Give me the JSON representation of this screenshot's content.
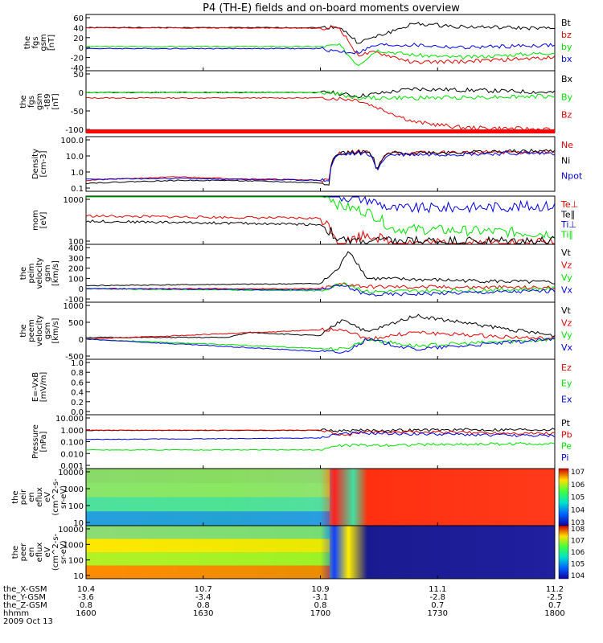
{
  "title": "P4 (TH-E) fields and on-board moments overview",
  "colors": {
    "black": "#000000",
    "red": "#e00000",
    "green": "#00e000",
    "blue": "#0000e0",
    "axis": "#000000"
  },
  "time_ticks": [
    "1600",
    "1630",
    "1700",
    "1730",
    "1800"
  ],
  "footer": {
    "rows": [
      {
        "label": "the_X-GSM",
        "values": [
          "10.4",
          "10.7",
          "10.9",
          "11.1",
          "11.2"
        ]
      },
      {
        "label": "the_Y-GSM",
        "values": [
          "-3.6",
          "-3.4",
          "-3.1",
          "-2.8",
          "-2.5"
        ]
      },
      {
        "label": "the_Z-GSM",
        "values": [
          "0.8",
          "0.8",
          "0.8",
          "0.7",
          "0.7"
        ]
      },
      {
        "label": "hhmm",
        "values": [
          "1600",
          "1630",
          "1700",
          "1730",
          "1800"
        ]
      }
    ],
    "date": "2009 Oct 13"
  },
  "chart_data": [
    {
      "type": "line",
      "ylabel": [
        "the",
        "fgs",
        "gsm",
        "[nT]"
      ],
      "yticks": [
        "60",
        "40",
        "20",
        "0",
        "-20",
        "-40"
      ],
      "legend": [
        {
          "name": "Bt",
          "color": "black"
        },
        {
          "name": "bz",
          "color": "red"
        },
        {
          "name": "by",
          "color": "green"
        },
        {
          "name": "bx",
          "color": "blue"
        }
      ],
      "series": [
        {
          "name": "Bt",
          "color": "black",
          "segments": [
            [
              0,
              40
            ],
            [
              0.5,
              40
            ],
            [
              0.54,
              42
            ],
            [
              0.58,
              10
            ],
            [
              0.62,
              22
            ],
            [
              0.7,
              48
            ],
            [
              0.8,
              42
            ],
            [
              1,
              38
            ]
          ]
        },
        {
          "name": "bz",
          "color": "red",
          "segments": [
            [
              0,
              40
            ],
            [
              0.5,
              39
            ],
            [
              0.54,
              40
            ],
            [
              0.58,
              -15
            ],
            [
              0.62,
              -10
            ],
            [
              0.7,
              -30
            ],
            [
              0.8,
              -28
            ],
            [
              1,
              -20
            ]
          ]
        },
        {
          "name": "by",
          "color": "green",
          "segments": [
            [
              0,
              2
            ],
            [
              0.5,
              2
            ],
            [
              0.54,
              5
            ],
            [
              0.58,
              -35
            ],
            [
              0.62,
              -5
            ],
            [
              0.7,
              -15
            ],
            [
              0.8,
              -20
            ],
            [
              1,
              -10
            ]
          ]
        },
        {
          "name": "bx",
          "color": "blue",
          "segments": [
            [
              0,
              -2
            ],
            [
              0.5,
              -2
            ],
            [
              0.54,
              -8
            ],
            [
              0.58,
              -10
            ],
            [
              0.62,
              5
            ],
            [
              0.7,
              5
            ],
            [
              0.8,
              0
            ],
            [
              1,
              5
            ]
          ]
        }
      ]
    },
    {
      "type": "line",
      "ylabel": [
        "the",
        "fgs",
        "gsm",
        "-t89",
        "[nT]"
      ],
      "yticks": [
        "50",
        "0",
        "-50",
        "-100"
      ],
      "legend": [
        {
          "name": "Bx",
          "color": "black"
        },
        {
          "name": "By",
          "color": "green"
        },
        {
          "name": "Bz",
          "color": "red"
        }
      ],
      "series": [
        {
          "name": "Bx",
          "color": "black",
          "segments": [
            [
              0,
              0
            ],
            [
              0.52,
              0
            ],
            [
              0.58,
              -10
            ],
            [
              0.7,
              10
            ],
            [
              1,
              0
            ]
          ]
        },
        {
          "name": "By",
          "color": "green",
          "segments": [
            [
              0,
              0
            ],
            [
              0.52,
              0
            ],
            [
              0.58,
              -15
            ],
            [
              0.7,
              -15
            ],
            [
              1,
              -10
            ]
          ]
        },
        {
          "name": "Bz",
          "color": "red",
          "segments": [
            [
              0,
              -15
            ],
            [
              0.52,
              -15
            ],
            [
              0.58,
              -20
            ],
            [
              0.7,
              -80
            ],
            [
              0.8,
              -95
            ],
            [
              1,
              -100
            ]
          ]
        }
      ]
    },
    {
      "type": "line",
      "log": true,
      "ylabel": [
        "Density",
        "[cm-3]"
      ],
      "yticks": [
        "100.0",
        "10.0",
        "1.0",
        "0.1"
      ],
      "legend": [
        {
          "name": "Ne",
          "color": "red"
        },
        {
          "name": "Ni",
          "color": "black"
        },
        {
          "name": "Npot",
          "color": "blue"
        }
      ],
      "series": [
        {
          "name": "Ne",
          "color": "red",
          "segments": [
            [
              0,
              0.3
            ],
            [
              0.2,
              0.5
            ],
            [
              0.3,
              0.4
            ],
            [
              0.52,
              0.3
            ],
            [
              0.54,
              15
            ],
            [
              0.6,
              20
            ],
            [
              0.62,
              0.2
            ],
            [
              0.65,
              15
            ],
            [
              1,
              18
            ]
          ]
        },
        {
          "name": "Ni",
          "color": "black",
          "segments": [
            [
              0,
              0.2
            ],
            [
              0.2,
              0.3
            ],
            [
              0.3,
              0.3
            ],
            [
              0.52,
              0.2
            ],
            [
              0.54,
              15
            ],
            [
              0.6,
              18
            ],
            [
              0.62,
              0.15
            ],
            [
              0.65,
              15
            ],
            [
              1,
              20
            ]
          ]
        },
        {
          "name": "Npot",
          "color": "blue",
          "segments": [
            [
              0,
              0.35
            ],
            [
              0.2,
              0.4
            ],
            [
              0.3,
              0.35
            ],
            [
              0.52,
              0.3
            ],
            [
              0.54,
              12
            ],
            [
              0.6,
              15
            ],
            [
              0.62,
              0.25
            ],
            [
              0.65,
              12
            ],
            [
              1,
              15
            ]
          ]
        }
      ]
    },
    {
      "type": "line",
      "log": true,
      "ylabel": [
        "mom",
        "[eV]"
      ],
      "yticks": [
        "1000",
        "100"
      ],
      "legend": [
        {
          "name": "Te⊥",
          "color": "red"
        },
        {
          "name": "Te∥",
          "color": "black"
        },
        {
          "name": "Ti⊥",
          "color": "blue"
        },
        {
          "name": "Ti∥",
          "color": "green"
        }
      ],
      "series": [
        {
          "name": "Ti⊥",
          "color": "blue",
          "segments": [
            [
              0,
              2500
            ],
            [
              0.5,
              2500
            ],
            [
              0.54,
              1200
            ],
            [
              0.6,
              1000
            ],
            [
              0.65,
              600
            ],
            [
              1,
              700
            ]
          ]
        },
        {
          "name": "Ti∥",
          "color": "green",
          "segments": [
            [
              0,
              1800
            ],
            [
              0.5,
              1600
            ],
            [
              0.54,
              700
            ],
            [
              0.6,
              500
            ],
            [
              0.65,
              200
            ],
            [
              1,
              150
            ]
          ]
        },
        {
          "name": "Te⊥",
          "color": "red",
          "segments": [
            [
              0,
              400
            ],
            [
              0.5,
              350
            ],
            [
              0.54,
              80
            ],
            [
              0.6,
              150
            ],
            [
              0.65,
              90
            ],
            [
              1,
              90
            ]
          ]
        },
        {
          "name": "Te∥",
          "color": "black",
          "segments": [
            [
              0,
              300
            ],
            [
              0.5,
              250
            ],
            [
              0.54,
              100
            ],
            [
              0.6,
              100
            ],
            [
              0.65,
              100
            ],
            [
              1,
              100
            ]
          ]
        }
      ]
    },
    {
      "type": "line",
      "ylabel": [
        "the",
        "peim",
        "velocity",
        "gsm",
        "[km/s]"
      ],
      "yticks": [
        "400",
        "300",
        "200",
        "100",
        "0",
        "-100"
      ],
      "legend": [
        {
          "name": "Vt",
          "color": "black"
        },
        {
          "name": "Vz",
          "color": "red"
        },
        {
          "name": "Vy",
          "color": "green"
        },
        {
          "name": "Vx",
          "color": "blue"
        }
      ],
      "series": [
        {
          "name": "Vt",
          "color": "black",
          "segments": [
            [
              0,
              30
            ],
            [
              0.5,
              50
            ],
            [
              0.54,
              200
            ],
            [
              0.56,
              380
            ],
            [
              0.6,
              100
            ],
            [
              1,
              60
            ]
          ]
        },
        {
          "name": "Vz",
          "color": "red",
          "segments": [
            [
              0,
              0
            ],
            [
              0.5,
              0
            ],
            [
              0.55,
              50
            ],
            [
              0.6,
              20
            ],
            [
              1,
              10
            ]
          ]
        },
        {
          "name": "Vy",
          "color": "green",
          "segments": [
            [
              0,
              0
            ],
            [
              0.5,
              -20
            ],
            [
              0.55,
              60
            ],
            [
              0.6,
              -30
            ],
            [
              1,
              0
            ]
          ]
        },
        {
          "name": "Vx",
          "color": "blue",
          "segments": [
            [
              0,
              0
            ],
            [
              0.5,
              -10
            ],
            [
              0.55,
              30
            ],
            [
              0.6,
              -60
            ],
            [
              1,
              -20
            ]
          ]
        }
      ]
    },
    {
      "type": "line",
      "ylabel": [
        "the",
        "peem",
        "velocity",
        "gsm",
        "[km/s]"
      ],
      "yticks": [
        "1000",
        "500",
        "0",
        "-500"
      ],
      "legend": [
        {
          "name": "Vt",
          "color": "black"
        },
        {
          "name": "Vz",
          "color": "red"
        },
        {
          "name": "Vy",
          "color": "green"
        },
        {
          "name": "Vx",
          "color": "blue"
        }
      ],
      "series": [
        {
          "name": "Vt",
          "color": "black",
          "segments": [
            [
              0,
              50
            ],
            [
              0.3,
              50
            ],
            [
              0.35,
              200
            ],
            [
              0.5,
              100
            ],
            [
              0.55,
              600
            ],
            [
              0.6,
              200
            ],
            [
              0.7,
              700
            ],
            [
              1,
              100
            ]
          ]
        },
        {
          "name": "Vz",
          "color": "red",
          "segments": [
            [
              0,
              0
            ],
            [
              0.55,
              300
            ],
            [
              0.6,
              0
            ],
            [
              0.7,
              200
            ],
            [
              1,
              0
            ]
          ]
        },
        {
          "name": "Vy",
          "color": "green",
          "segments": [
            [
              0,
              0
            ],
            [
              0.55,
              -300
            ],
            [
              0.6,
              0
            ],
            [
              0.7,
              -200
            ],
            [
              1,
              0
            ]
          ]
        },
        {
          "name": "Vx",
          "color": "blue",
          "segments": [
            [
              0,
              0
            ],
            [
              0.55,
              -400
            ],
            [
              0.6,
              0
            ],
            [
              0.7,
              -300
            ],
            [
              1,
              0
            ]
          ]
        }
      ]
    },
    {
      "type": "line",
      "ylabel": [
        "E=-VxB",
        "[mV/m]"
      ],
      "yticks": [
        "1.0",
        "0.8",
        "0.6",
        "0.4",
        "0.2",
        "0.0"
      ],
      "legend": [
        {
          "name": "Ez",
          "color": "red"
        },
        {
          "name": "Ey",
          "color": "green"
        },
        {
          "name": "Ex",
          "color": "blue"
        }
      ],
      "series": []
    },
    {
      "type": "line",
      "log": true,
      "ylabel": [
        "Pressure",
        "[nPa]"
      ],
      "yticks": [
        "10.000",
        "1.000",
        "0.100",
        "0.010",
        "0.001"
      ],
      "legend": [
        {
          "name": "Pt",
          "color": "black"
        },
        {
          "name": "Pb",
          "color": "red"
        },
        {
          "name": "Pe",
          "color": "green"
        },
        {
          "name": "Pi",
          "color": "blue"
        }
      ],
      "series": [
        {
          "name": "Pt",
          "color": "black",
          "segments": [
            [
              0,
              0.9
            ],
            [
              0.5,
              0.9
            ],
            [
              0.55,
              0.8
            ],
            [
              0.6,
              0.9
            ],
            [
              1,
              1.1
            ]
          ]
        },
        {
          "name": "Pb",
          "color": "red",
          "segments": [
            [
              0,
              0.9
            ],
            [
              0.5,
              0.9
            ],
            [
              0.55,
              0.3
            ],
            [
              0.6,
              0.7
            ],
            [
              1,
              0.5
            ]
          ]
        },
        {
          "name": "Pi",
          "color": "blue",
          "segments": [
            [
              0,
              0.15
            ],
            [
              0.5,
              0.2
            ],
            [
              0.55,
              0.5
            ],
            [
              0.6,
              0.5
            ],
            [
              1,
              0.3
            ]
          ]
        },
        {
          "name": "Pe",
          "color": "green",
          "segments": [
            [
              0,
              0.02
            ],
            [
              0.5,
              0.02
            ],
            [
              0.55,
              0.05
            ],
            [
              0.6,
              0.05
            ],
            [
              1,
              0.07
            ]
          ]
        }
      ]
    },
    {
      "type": "heatmap",
      "ylabel": [
        "the",
        "peir",
        "en",
        "eflux",
        "eV",
        "(cm^2-s-",
        "sr-eV)"
      ],
      "yticks": [
        "10000",
        "1000",
        "100",
        "10"
      ],
      "colorbar_ticks": [
        "10^7",
        "10^6",
        "10^5",
        "10^4",
        "10^3"
      ]
    },
    {
      "type": "heatmap",
      "ylabel": [
        "the",
        "peer",
        "en",
        "eflux",
        "eV",
        "(cm^2-s-",
        "sr-eV)"
      ],
      "yticks": [
        "10000",
        "1000",
        "100",
        "10"
      ],
      "colorbar_ticks": [
        "10^8",
        "10^7",
        "10^6",
        "10^5",
        "10^4"
      ]
    }
  ]
}
